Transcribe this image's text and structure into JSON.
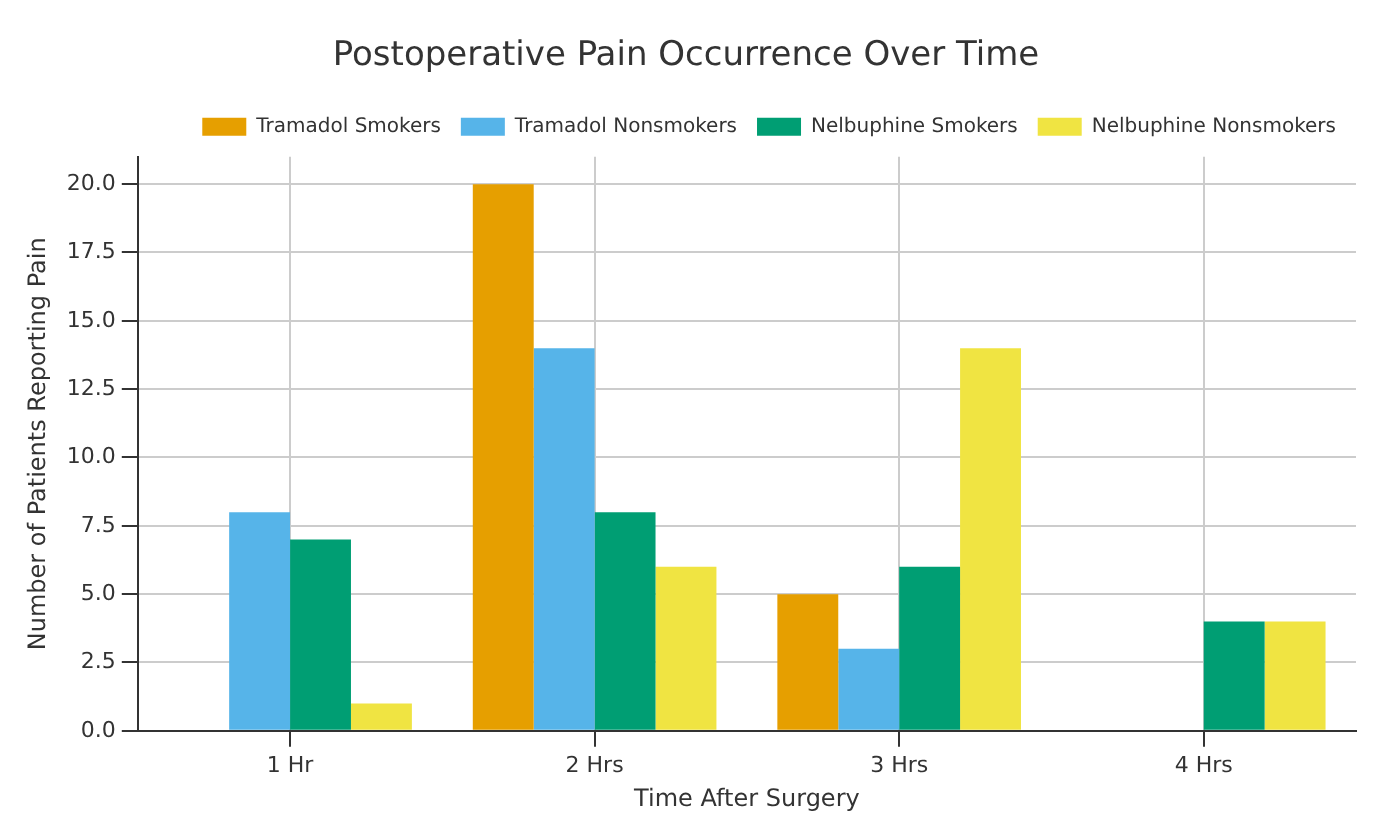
{
  "chart_data": {
    "type": "bar",
    "title": "Postoperative Pain Occurrence Over Time",
    "xlabel": "Time After Surgery",
    "ylabel": "Number of Patients Reporting Pain",
    "categories": [
      "1 Hr",
      "2 Hrs",
      "3 Hrs",
      "4 Hrs"
    ],
    "series": [
      {
        "name": "Tramadol Smokers",
        "color": "#e69f00",
        "values": [
          0,
          20,
          5,
          0
        ]
      },
      {
        "name": "Tramadol Nonsmokers",
        "color": "#56b4e9",
        "values": [
          8,
          14,
          3,
          0
        ]
      },
      {
        "name": "Nelbuphine Smokers",
        "color": "#009e73",
        "values": [
          7,
          8,
          6,
          4
        ]
      },
      {
        "name": "Nelbuphine Nonsmokers",
        "color": "#f0e442",
        "values": [
          1,
          6,
          14,
          4
        ]
      }
    ],
    "ylim": [
      0,
      21
    ],
    "yticks": [
      {
        "value": 0,
        "label": "0.0"
      },
      {
        "value": 2.5,
        "label": "2.5"
      },
      {
        "value": 5,
        "label": "5.0"
      },
      {
        "value": 7.5,
        "label": "7.5"
      },
      {
        "value": 10,
        "label": "10.0"
      },
      {
        "value": 12.5,
        "label": "12.5"
      },
      {
        "value": 15,
        "label": "15.0"
      },
      {
        "value": 17.5,
        "label": "17.5"
      },
      {
        "value": 20,
        "label": "20.0"
      }
    ],
    "grid": true,
    "legend": "top right"
  }
}
